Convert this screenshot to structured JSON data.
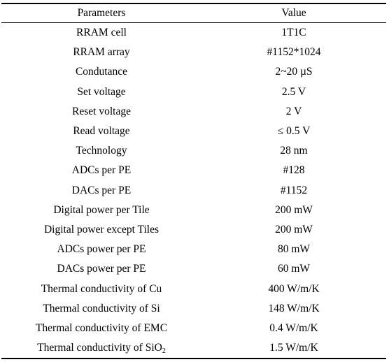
{
  "table": {
    "headers": [
      "Parameters",
      "Value"
    ],
    "rows": [
      {
        "parameter": "RRAM cell",
        "value": "1T1C"
      },
      {
        "parameter": "RRAM array",
        "value": "#1152*1024"
      },
      {
        "parameter": "Condutance",
        "value": "2~20 µS"
      },
      {
        "parameter": "Set voltage",
        "value": "2.5 V"
      },
      {
        "parameter": "Reset voltage",
        "value": "2 V"
      },
      {
        "parameter": "Read voltage",
        "value": "≤ 0.5 V"
      },
      {
        "parameter": "Technology",
        "value": "28 nm"
      },
      {
        "parameter": "ADCs per PE",
        "value": "#128"
      },
      {
        "parameter": "DACs per PE",
        "value": "#1152"
      },
      {
        "parameter": "Digital power per Tile",
        "value": "200 mW"
      },
      {
        "parameter": "Digital power except Tiles",
        "value": "200 mW"
      },
      {
        "parameter": "ADCs power per PE",
        "value": "80 mW"
      },
      {
        "parameter": "DACs power per PE",
        "value": "60 mW"
      },
      {
        "parameter": "Thermal conductivity of Cu",
        "value": "400 W/m/K"
      },
      {
        "parameter": "Thermal conductivity of Si",
        "value": "148 W/m/K"
      },
      {
        "parameter": "Thermal conductivity of EMC",
        "value": "0.4 W/m/K"
      },
      {
        "parameter": "Thermal conductivity of SiO",
        "parameter_subscript": "2",
        "value": "1.5 W/m/K"
      }
    ]
  }
}
